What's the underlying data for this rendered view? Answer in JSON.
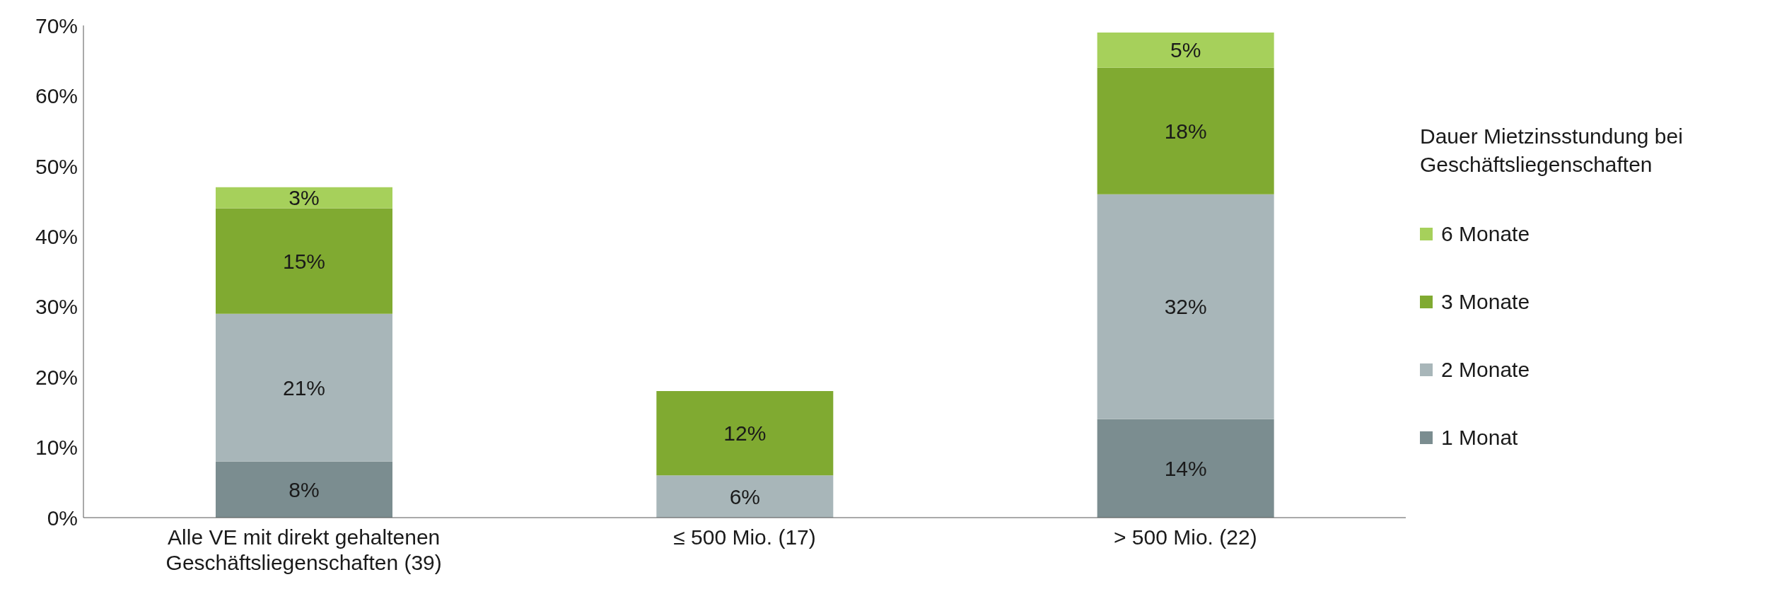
{
  "chart_data": {
    "type": "bar",
    "stacked": true,
    "legend_title": "Dauer Mietzinsstundung bei Geschäftsliegenschaften",
    "categories": [
      "Alle VE mit direkt gehaltenen Geschäftsliegenschaften (39)",
      "≤ 500 Mio. (17)",
      "> 500 Mio. (22)"
    ],
    "series": [
      {
        "name": "1 Monat",
        "color": "#7b8d90",
        "values": [
          8,
          null,
          14
        ],
        "value_labels": [
          "8%",
          null,
          "14%"
        ]
      },
      {
        "name": "2 Monate",
        "color": "#a8b6b9",
        "values": [
          21,
          6,
          32
        ],
        "value_labels": [
          "21%",
          "6%",
          "32%"
        ]
      },
      {
        "name": "3 Monate",
        "color": "#80aa31",
        "values": [
          15,
          12,
          18
        ],
        "value_labels": [
          "15%",
          "12%",
          "18%"
        ]
      },
      {
        "name": "6 Monate",
        "color": "#a6d05b",
        "values": [
          3,
          null,
          5
        ],
        "value_labels": [
          "3%",
          null,
          "5%"
        ]
      }
    ],
    "ylim": [
      0,
      70
    ],
    "yticks": [
      {
        "value": 0,
        "label": "0%"
      },
      {
        "value": 10,
        "label": "10%"
      },
      {
        "value": 20,
        "label": "20%"
      },
      {
        "value": 30,
        "label": "30%"
      },
      {
        "value": 40,
        "label": "40%"
      },
      {
        "value": 50,
        "label": "50%"
      },
      {
        "value": 60,
        "label": "60%"
      },
      {
        "value": 70,
        "label": "70%"
      }
    ],
    "grid": false,
    "legend": "right"
  }
}
